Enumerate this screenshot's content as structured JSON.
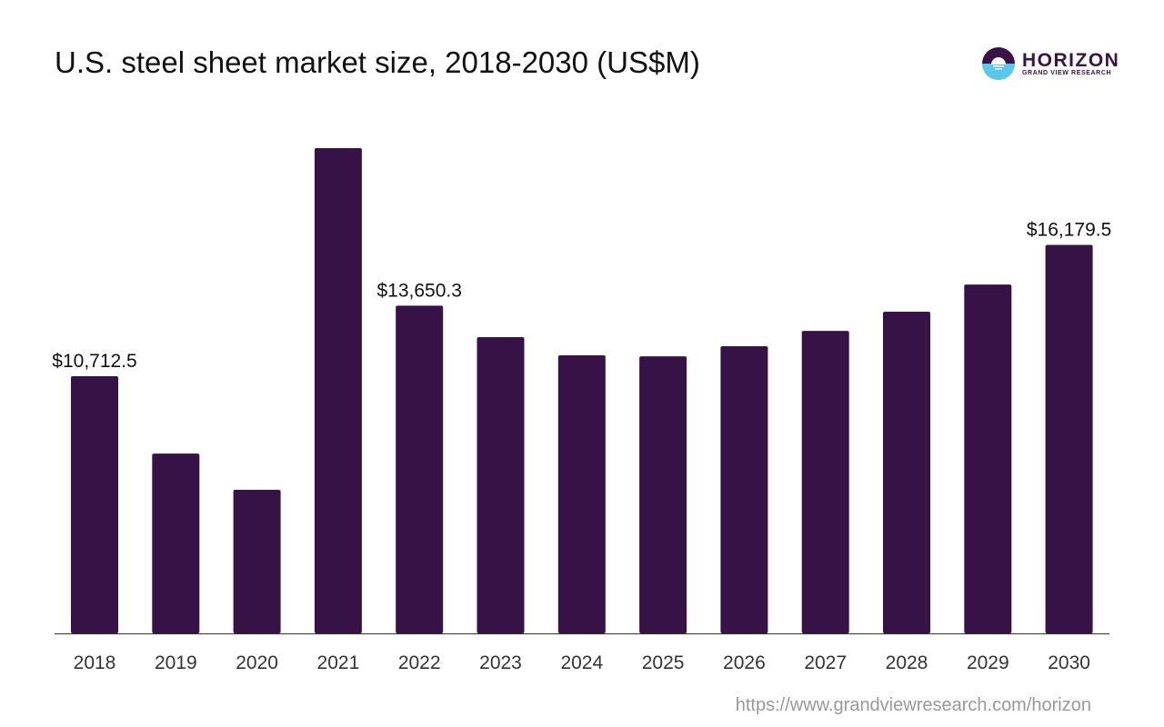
{
  "logo": {
    "name": "HORIZON",
    "sub": "GRAND VIEW RESEARCH"
  },
  "footer": {
    "url": "https://www.grandviewresearch.com/horizon"
  },
  "chart_data": {
    "type": "bar",
    "title": "U.S. steel sheet market size, 2018-2030 (US$M)",
    "xlabel": "",
    "ylabel": "",
    "categories": [
      "2018",
      "2019",
      "2020",
      "2021",
      "2022",
      "2023",
      "2024",
      "2025",
      "2026",
      "2027",
      "2028",
      "2029",
      "2030"
    ],
    "values": [
      10712.5,
      7490,
      5980,
      20210,
      13650.3,
      12340,
      11580,
      11540,
      11960,
      12600,
      13400,
      14530,
      16179.5
    ],
    "data_labels": {
      "0": "$10,712.5",
      "4": "$13,650.3",
      "12": "$16,179.5"
    },
    "ylim": [
      0,
      21000
    ],
    "grid": false,
    "bar_color": "#371247"
  }
}
